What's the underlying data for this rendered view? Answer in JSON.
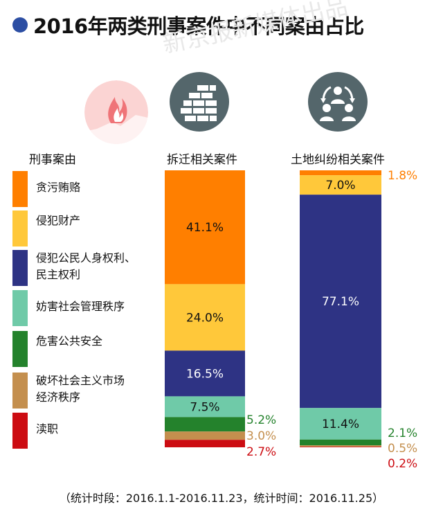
{
  "title": "2016年两类刑事案件中不同案由占比",
  "watermark": "新京报新媒体出品",
  "legend_header": "刑事案由",
  "footnote": "（统计时段：2016.1.1-2016.11.23，统计时间：2016.11.25）",
  "icons": {
    "left": "flame-logo-icon",
    "demolition": "brick-wall-icon",
    "land": "people-dispute-icon"
  },
  "colors": {
    "贪污贿赂": "#ff7f00",
    "侵犯财产": "#ffc83a",
    "侵犯公民人身权利、民主权利": "#2e3384",
    "妨害社会管理秩序": "#6fcaa8",
    "危害公共安全": "#24822c",
    "破坏社会主义市场经济秩序": "#c48f4e",
    "渎职": "#cc0c12",
    "icon_bg": "#54666b",
    "logo": "#ef7478"
  },
  "legend": [
    {
      "key": "贪污贿赂",
      "lines": [
        "贪污贿赂"
      ]
    },
    {
      "key": "侵犯财产",
      "lines": [
        "侵犯财产"
      ]
    },
    {
      "key": "侵犯公民人身权利、民主权利",
      "lines": [
        "侵犯公民人身权利、",
        "民主权利"
      ]
    },
    {
      "key": "妨害社会管理秩序",
      "lines": [
        "妨害社会管理秩序"
      ]
    },
    {
      "key": "危害公共安全",
      "lines": [
        "危害公共安全"
      ]
    },
    {
      "key": "破坏社会主义市场经济秩序",
      "lines": [
        "破坏社会主义市场",
        "经济秩序"
      ]
    },
    {
      "key": "渎职",
      "lines": [
        "渎职"
      ]
    }
  ],
  "chart_data": {
    "type": "bar",
    "stacked": true,
    "unit": "%",
    "categories": [
      "拆迁相关案件",
      "土地纠纷相关案件"
    ],
    "series": [
      {
        "name": "贪污贿赂",
        "values": [
          41.1,
          1.8
        ],
        "labels": [
          "41.1%",
          "1.8%"
        ]
      },
      {
        "name": "侵犯财产",
        "values": [
          24.0,
          7.0
        ],
        "labels": [
          "24.0%",
          "7.0%"
        ]
      },
      {
        "name": "侵犯公民人身权利、民主权利",
        "values": [
          16.5,
          77.1
        ],
        "labels": [
          "16.5%",
          "77.1%"
        ]
      },
      {
        "name": "妨害社会管理秩序",
        "values": [
          7.5,
          11.4
        ],
        "labels": [
          "7.5%",
          "11.4%"
        ]
      },
      {
        "name": "危害公共安全",
        "values": [
          5.2,
          2.1
        ],
        "labels": [
          "5.2%",
          "2.1%"
        ]
      },
      {
        "name": "破坏社会主义市场经济秩序",
        "values": [
          3.0,
          0.5
        ],
        "labels": [
          "3.0%",
          "0.5%"
        ]
      },
      {
        "name": "渎职",
        "values": [
          2.7,
          0.2
        ],
        "labels": [
          "2.7%",
          "0.2%"
        ]
      }
    ]
  }
}
